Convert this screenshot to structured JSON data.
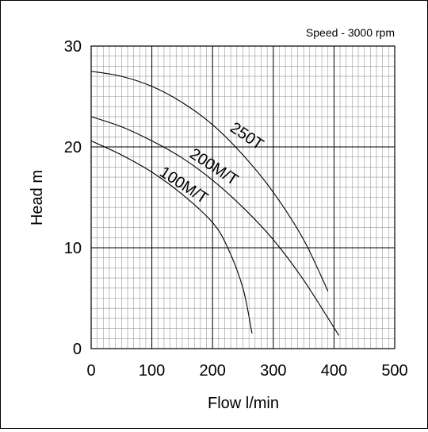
{
  "chart_data": {
    "type": "line",
    "annotation": "Speed - 3000 rpm",
    "xlabel": "Flow l/min",
    "ylabel": "Head m",
    "xlim": [
      0,
      500
    ],
    "ylim": [
      0,
      30
    ],
    "x_ticks": [
      0,
      100,
      200,
      300,
      400,
      500
    ],
    "y_ticks": [
      0,
      10,
      20,
      30
    ],
    "grid": true,
    "series": [
      {
        "name": "250T",
        "x": [
          0,
          50,
          100,
          150,
          200,
          250,
          300,
          350,
          390
        ],
        "y": [
          27.5,
          27.0,
          26.0,
          24.4,
          22.2,
          19.2,
          15.5,
          10.8,
          5.7
        ]
      },
      {
        "name": "200M/T",
        "x": [
          0,
          50,
          100,
          150,
          200,
          250,
          300,
          350,
          408
        ],
        "y": [
          23.0,
          22.0,
          20.6,
          18.9,
          16.7,
          14.0,
          10.8,
          6.8,
          1.3
        ]
      },
      {
        "name": "100M/T",
        "x": [
          0,
          50,
          100,
          150,
          200,
          225,
          250,
          265
        ],
        "y": [
          20.6,
          19.2,
          17.5,
          15.3,
          12.5,
          10.0,
          6.0,
          1.5
        ]
      }
    ]
  }
}
